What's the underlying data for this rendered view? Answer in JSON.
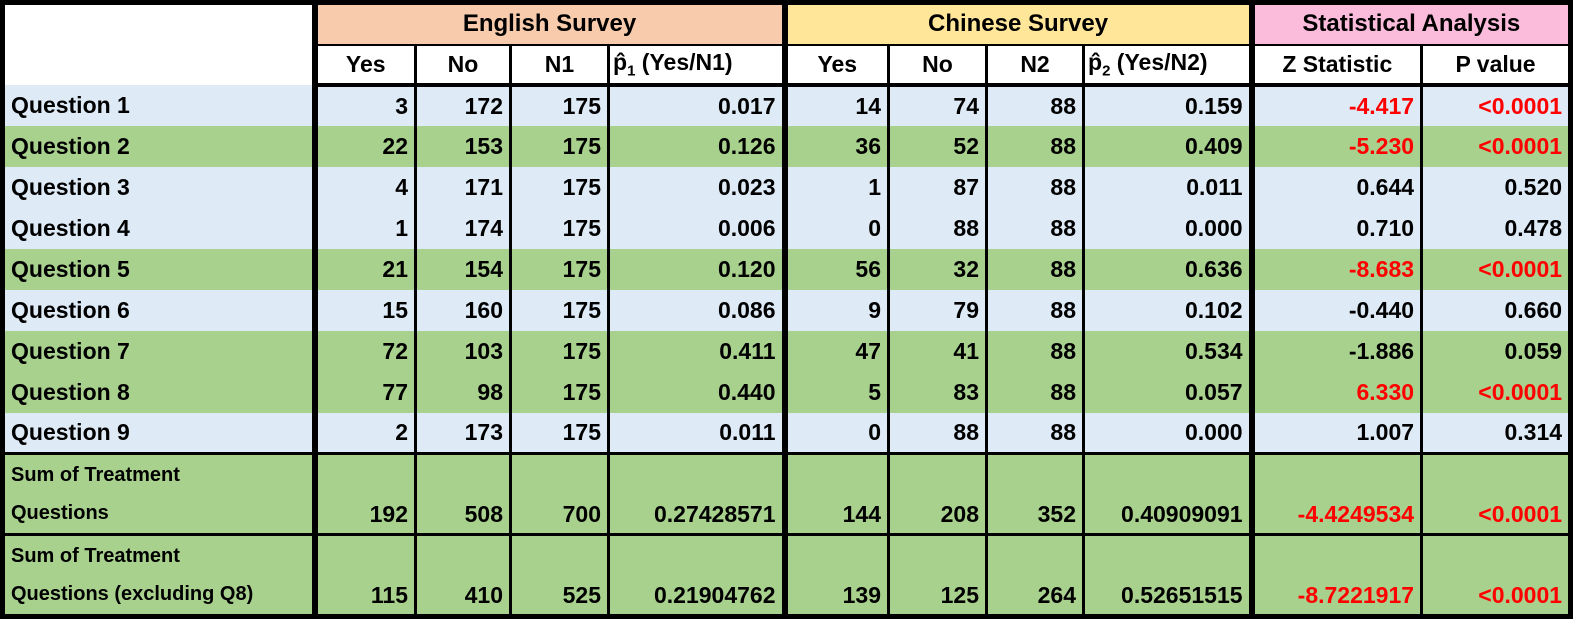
{
  "colors": {
    "header_english_bg": "#F8CBAD",
    "header_chinese_bg": "#FFE699",
    "header_stats_bg": "#FBBCDB",
    "row_blue_bg": "#DEEAF6",
    "row_green_bg": "#A9D18E",
    "significant_text": "#FF0000",
    "border": "#000000"
  },
  "chart_data": {
    "type": "table",
    "section_headers": {
      "english": "English Survey",
      "chinese": "Chinese Survey",
      "stats": "Statistical Analysis"
    },
    "column_headers": {
      "en_yes": "Yes",
      "en_no": "No",
      "en_n1": "N1",
      "en_phat_base": "p̂",
      "en_phat_sub": "1",
      "en_phat_rest": " (Yes/N1)",
      "cn_yes": "Yes",
      "cn_no": "No",
      "cn_n2": "N2",
      "cn_phat_base": "p̂",
      "cn_phat_sub": "2",
      "cn_phat_rest": " (Yes/N2)",
      "z": "Z Statistic",
      "p": "P value"
    },
    "rows": [
      {
        "label": "Question 1",
        "band": "blue",
        "tall": false,
        "significant": true,
        "en_yes": "3",
        "en_no": "172",
        "en_n1": "175",
        "en_p": "0.017",
        "cn_yes": "14",
        "cn_no": "74",
        "cn_n2": "88",
        "cn_p": "0.159",
        "z": "-4.417",
        "p": "<0.0001"
      },
      {
        "label": "Question 2",
        "band": "green",
        "tall": false,
        "significant": true,
        "en_yes": "22",
        "en_no": "153",
        "en_n1": "175",
        "en_p": "0.126",
        "cn_yes": "36",
        "cn_no": "52",
        "cn_n2": "88",
        "cn_p": "0.409",
        "z": "-5.230",
        "p": "<0.0001"
      },
      {
        "label": "Question 3",
        "band": "blue",
        "tall": false,
        "significant": false,
        "en_yes": "4",
        "en_no": "171",
        "en_n1": "175",
        "en_p": "0.023",
        "cn_yes": "1",
        "cn_no": "87",
        "cn_n2": "88",
        "cn_p": "0.011",
        "z": "0.644",
        "p": "0.520"
      },
      {
        "label": "Question 4",
        "band": "blue",
        "tall": false,
        "significant": false,
        "en_yes": "1",
        "en_no": "174",
        "en_n1": "175",
        "en_p": "0.006",
        "cn_yes": "0",
        "cn_no": "88",
        "cn_n2": "88",
        "cn_p": "0.000",
        "z": "0.710",
        "p": "0.478"
      },
      {
        "label": "Question 5",
        "band": "green",
        "tall": false,
        "significant": true,
        "en_yes": "21",
        "en_no": "154",
        "en_n1": "175",
        "en_p": "0.120",
        "cn_yes": "56",
        "cn_no": "32",
        "cn_n2": "88",
        "cn_p": "0.636",
        "z": "-8.683",
        "p": "<0.0001"
      },
      {
        "label": "Question 6",
        "band": "blue",
        "tall": false,
        "significant": false,
        "en_yes": "15",
        "en_no": "160",
        "en_n1": "175",
        "en_p": "0.086",
        "cn_yes": "9",
        "cn_no": "79",
        "cn_n2": "88",
        "cn_p": "0.102",
        "z": "-0.440",
        "p": "0.660"
      },
      {
        "label": "Question 7",
        "band": "green",
        "tall": false,
        "significant": false,
        "en_yes": "72",
        "en_no": "103",
        "en_n1": "175",
        "en_p": "0.411",
        "cn_yes": "47",
        "cn_no": "41",
        "cn_n2": "88",
        "cn_p": "0.534",
        "z": "-1.886",
        "p": "0.059"
      },
      {
        "label": "Question 8",
        "band": "green",
        "tall": false,
        "significant": true,
        "en_yes": "77",
        "en_no": "98",
        "en_n1": "175",
        "en_p": "0.440",
        "cn_yes": "5",
        "cn_no": "83",
        "cn_n2": "88",
        "cn_p": "0.057",
        "z": "6.330",
        "p": "<0.0001"
      },
      {
        "label": "Question 9",
        "band": "blue",
        "tall": false,
        "significant": false,
        "en_yes": "2",
        "en_no": "173",
        "en_n1": "175",
        "en_p": "0.011",
        "cn_yes": "0",
        "cn_no": "88",
        "cn_n2": "88",
        "cn_p": "0.000",
        "z": "1.007",
        "p": "0.314"
      },
      {
        "label": "Sum of Treatment\nQuestions",
        "band": "green",
        "tall": true,
        "significant": true,
        "en_yes": "192",
        "en_no": "508",
        "en_n1": "700",
        "en_p": "0.27428571",
        "cn_yes": "144",
        "cn_no": "208",
        "cn_n2": "352",
        "cn_p": "0.40909091",
        "z": "-4.4249534",
        "p": "<0.0001"
      },
      {
        "label": "Sum of Treatment\nQuestions (excluding Q8)",
        "band": "green",
        "tall": true,
        "significant": true,
        "en_yes": "115",
        "en_no": "410",
        "en_n1": "525",
        "en_p": "0.21904762",
        "cn_yes": "139",
        "cn_no": "125",
        "cn_n2": "264",
        "cn_p": "0.52651515",
        "z": "-8.7221917",
        "p": "<0.0001"
      }
    ]
  }
}
